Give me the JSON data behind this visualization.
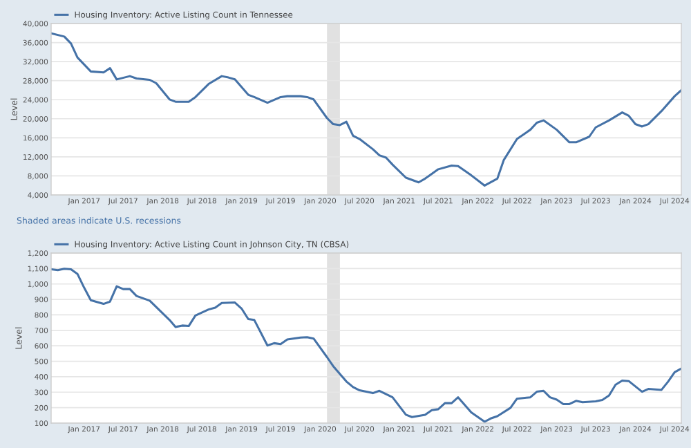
{
  "chart_data": [
    {
      "type": "line",
      "ylabel": "Level",
      "annotations": [
        "Shaded areas indicate U.S. recessions"
      ],
      "legend": "top left",
      "grid": "y",
      "line_style": "solid",
      "marker": "none",
      "xlim": [
        "2016-08",
        "2024-08"
      ],
      "ylim": [
        4000,
        40000
      ],
      "xticks": [
        {
          "value": "2017-01",
          "label": "Jan 2017"
        },
        {
          "value": "2017-07",
          "label": "Jul 2017"
        },
        {
          "value": "2018-01",
          "label": "Jan 2018"
        },
        {
          "value": "2018-07",
          "label": "Jul 2018"
        },
        {
          "value": "2019-01",
          "label": "Jan 2019"
        },
        {
          "value": "2019-07",
          "label": "Jul 2019"
        },
        {
          "value": "2020-01",
          "label": "Jan 2020"
        },
        {
          "value": "2020-07",
          "label": "Jul 2020"
        },
        {
          "value": "2021-01",
          "label": "Jan 2021"
        },
        {
          "value": "2021-07",
          "label": "Jul 2021"
        },
        {
          "value": "2022-01",
          "label": "Jan 2022"
        },
        {
          "value": "2022-07",
          "label": "Jul 2022"
        },
        {
          "value": "2023-01",
          "label": "Jan 2023"
        },
        {
          "value": "2023-07",
          "label": "Jul 2023"
        },
        {
          "value": "2024-01",
          "label": "Jan 2024"
        },
        {
          "value": "2024-07",
          "label": "Jul 2024"
        }
      ],
      "yticks": [
        {
          "value": 4000,
          "label": "4,000"
        },
        {
          "value": 8000,
          "label": "8,000"
        },
        {
          "value": 12000,
          "label": "12,000"
        },
        {
          "value": 16000,
          "label": "16,000"
        },
        {
          "value": 20000,
          "label": "20,000"
        },
        {
          "value": 24000,
          "label": "24,000"
        },
        {
          "value": 28000,
          "label": "28,000"
        },
        {
          "value": 32000,
          "label": "32,000"
        },
        {
          "value": 36000,
          "label": "36,000"
        },
        {
          "value": 40000,
          "label": "40,000"
        }
      ],
      "bands": [
        {
          "axis": "x",
          "from": "2020-02",
          "to": "2020-04",
          "color": "#e1e1e1"
        }
      ],
      "series": [
        {
          "name": "Housing Inventory: Active Listing Count in Tennessee",
          "color": "#4572a7",
          "x": [
            "2016-08",
            "2016-10",
            "2016-11",
            "2016-12",
            "2017-02",
            "2017-04",
            "2017-05",
            "2017-06",
            "2017-08",
            "2017-09",
            "2017-11",
            "2017-12",
            "2018-02",
            "2018-03",
            "2018-05",
            "2018-06",
            "2018-08",
            "2018-10",
            "2018-11",
            "2018-12",
            "2019-02",
            "2019-03",
            "2019-05",
            "2019-07",
            "2019-08",
            "2019-10",
            "2019-11",
            "2019-12",
            "2020-02",
            "2020-03",
            "2020-04",
            "2020-05",
            "2020-06",
            "2020-07",
            "2020-09",
            "2020-10",
            "2020-11",
            "2020-12",
            "2021-02",
            "2021-04",
            "2021-05",
            "2021-07",
            "2021-09",
            "2021-10",
            "2021-12",
            "2022-02",
            "2022-04",
            "2022-05",
            "2022-07",
            "2022-09",
            "2022-10",
            "2022-11",
            "2023-01",
            "2023-03",
            "2023-04",
            "2023-06",
            "2023-07",
            "2023-09",
            "2023-11",
            "2023-12",
            "2024-01",
            "2024-02",
            "2024-03",
            "2024-05",
            "2024-07",
            "2024-08"
          ],
          "values": [
            37950,
            37260,
            35800,
            32870,
            29930,
            29740,
            30620,
            28260,
            28950,
            28460,
            28170,
            27480,
            24060,
            23570,
            23570,
            24550,
            27290,
            28950,
            28660,
            28270,
            25040,
            24550,
            23370,
            24550,
            24740,
            24740,
            24550,
            24060,
            20150,
            18870,
            18670,
            19360,
            16430,
            15750,
            13600,
            12330,
            11840,
            10370,
            7630,
            6650,
            7430,
            9390,
            10170,
            10070,
            8120,
            5970,
            7430,
            11350,
            15750,
            17700,
            19170,
            19660,
            17700,
            15060,
            15060,
            16230,
            18190,
            19660,
            21330,
            20640,
            18870,
            18380,
            18870,
            21610,
            24740,
            26010
          ]
        }
      ]
    },
    {
      "type": "line",
      "ylabel": "Level",
      "legend": "top left",
      "grid": "y",
      "line_style": "solid",
      "marker": "none",
      "xlim": [
        "2016-08",
        "2024-08"
      ],
      "ylim": [
        100,
        1200
      ],
      "xticks": [
        {
          "value": "2017-01",
          "label": "Jan 2017"
        },
        {
          "value": "2017-07",
          "label": "Jul 2017"
        },
        {
          "value": "2018-01",
          "label": "Jan 2018"
        },
        {
          "value": "2018-07",
          "label": "Jul 2018"
        },
        {
          "value": "2019-01",
          "label": "Jan 2019"
        },
        {
          "value": "2019-07",
          "label": "Jul 2019"
        },
        {
          "value": "2020-01",
          "label": "Jan 2020"
        },
        {
          "value": "2020-07",
          "label": "Jul 2020"
        },
        {
          "value": "2021-01",
          "label": "Jan 2021"
        },
        {
          "value": "2021-07",
          "label": "Jul 2021"
        },
        {
          "value": "2022-01",
          "label": "Jan 2022"
        },
        {
          "value": "2022-07",
          "label": "Jul 2022"
        },
        {
          "value": "2023-01",
          "label": "Jan 2023"
        },
        {
          "value": "2023-07",
          "label": "Jul 2023"
        },
        {
          "value": "2024-01",
          "label": "Jan 2024"
        },
        {
          "value": "2024-07",
          "label": "Jul 2024"
        }
      ],
      "yticks": [
        100,
        200,
        300,
        400,
        500,
        600,
        700,
        800,
        900,
        {
          "value": 1000,
          "label": "1,000"
        },
        {
          "value": 1100,
          "label": "1,100"
        },
        {
          "value": 1200,
          "label": "1,200"
        }
      ],
      "bands": [
        {
          "axis": "x",
          "from": "2020-02",
          "to": "2020-04",
          "color": "#e1e1e1"
        }
      ],
      "series": [
        {
          "name": "Housing Inventory: Active Listing Count in Johnson City, TN (CBSA)",
          "color": "#4572a7",
          "x": [
            "2016-08",
            "2016-09",
            "2016-10",
            "2016-11",
            "2016-12",
            "2017-01",
            "2017-02",
            "2017-04",
            "2017-05",
            "2017-06",
            "2017-07",
            "2017-08",
            "2017-09",
            "2017-11",
            "2018-02",
            "2018-03",
            "2018-04",
            "2018-05",
            "2018-06",
            "2018-08",
            "2018-09",
            "2018-10",
            "2018-12",
            "2019-01",
            "2019-02",
            "2019-03",
            "2019-05",
            "2019-06",
            "2019-07",
            "2019-08",
            "2019-10",
            "2019-11",
            "2019-12",
            "2020-02",
            "2020-03",
            "2020-05",
            "2020-06",
            "2020-07",
            "2020-09",
            "2020-10",
            "2020-12",
            "2021-02",
            "2021-03",
            "2021-05",
            "2021-06",
            "2021-07",
            "2021-08",
            "2021-09",
            "2021-10",
            "2021-12",
            "2022-02",
            "2022-03",
            "2022-04",
            "2022-06",
            "2022-07",
            "2022-09",
            "2022-10",
            "2022-11",
            "2022-12",
            "2023-01",
            "2023-02",
            "2023-03",
            "2023-04",
            "2023-05",
            "2023-07",
            "2023-08",
            "2023-09",
            "2023-10",
            "2023-11",
            "2023-12",
            "2024-02",
            "2024-03",
            "2024-05",
            "2024-06",
            "2024-07",
            "2024-08"
          ],
          "values": [
            1095,
            1089,
            1098,
            1095,
            1065,
            976,
            895,
            871,
            886,
            985,
            967,
            967,
            922,
            892,
            767,
            722,
            731,
            728,
            796,
            835,
            847,
            877,
            880,
            841,
            773,
            767,
            602,
            617,
            611,
            641,
            653,
            656,
            647,
            527,
            468,
            369,
            333,
            312,
            294,
            309,
            267,
            154,
            139,
            154,
            184,
            190,
            229,
            229,
            267,
            169,
            109,
            130,
            145,
            199,
            258,
            267,
            303,
            309,
            267,
            252,
            223,
            223,
            244,
            235,
            241,
            250,
            279,
            348,
            375,
            372,
            303,
            321,
            315,
            369,
            429,
            453
          ]
        }
      ]
    }
  ]
}
